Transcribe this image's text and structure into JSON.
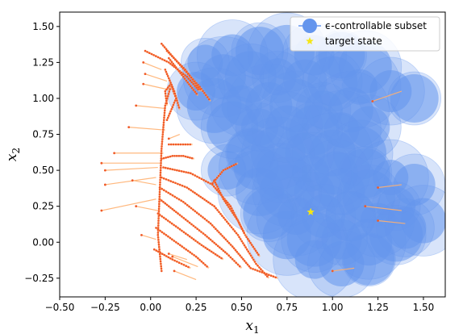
{
  "chart_data": {
    "type": "scatter",
    "title": "",
    "xlabel": "x",
    "xlabel_sub": "1",
    "ylabel": "x",
    "ylabel_sub": "2",
    "xlim": [
      -0.5,
      1.62
    ],
    "ylim": [
      -0.38,
      1.6
    ],
    "xticks": [
      -0.5,
      -0.25,
      0.0,
      0.25,
      0.5,
      0.75,
      1.0,
      1.25,
      1.5
    ],
    "xtick_labels": [
      "−0.50",
      "−0.25",
      "0.00",
      "0.25",
      "0.50",
      "0.75",
      "1.00",
      "1.25",
      "1.50"
    ],
    "yticks": [
      -0.25,
      0.0,
      0.25,
      0.5,
      0.75,
      1.0,
      1.25,
      1.5
    ],
    "ytick_labels": [
      "−0.25",
      "0.00",
      "0.25",
      "0.50",
      "0.75",
      "1.00",
      "1.25",
      "1.50"
    ],
    "grid": false,
    "legend_position": "top-right",
    "colors": {
      "subset": "#6495ED",
      "target": "#F5E616",
      "trajectory_dot": "#F05A28",
      "trajectory_line": "#FFB070"
    },
    "series": [
      {
        "name": "ϵ-controllable subset",
        "kind": "disks",
        "points": [
          [
            0.3,
            1.25
          ],
          [
            0.45,
            1.3
          ],
          [
            0.6,
            1.33
          ],
          [
            0.75,
            1.32
          ],
          [
            0.9,
            1.3
          ],
          [
            1.05,
            1.3
          ],
          [
            1.18,
            1.22
          ],
          [
            0.25,
            1.05
          ],
          [
            0.4,
            1.15
          ],
          [
            0.55,
            1.15
          ],
          [
            0.7,
            1.15
          ],
          [
            0.85,
            1.12
          ],
          [
            1.0,
            1.12
          ],
          [
            1.15,
            1.08
          ],
          [
            1.32,
            1.05
          ],
          [
            1.45,
            1.0
          ],
          [
            0.35,
            0.95
          ],
          [
            0.5,
            0.95
          ],
          [
            0.65,
            0.95
          ],
          [
            0.8,
            0.95
          ],
          [
            0.95,
            0.92
          ],
          [
            1.1,
            0.92
          ],
          [
            0.45,
            0.8
          ],
          [
            0.6,
            0.8
          ],
          [
            0.75,
            0.8
          ],
          [
            0.9,
            0.78
          ],
          [
            1.05,
            0.78
          ],
          [
            1.2,
            0.8
          ],
          [
            0.55,
            0.62
          ],
          [
            0.7,
            0.62
          ],
          [
            0.85,
            0.62
          ],
          [
            1.0,
            0.62
          ],
          [
            1.15,
            0.62
          ],
          [
            0.42,
            0.5
          ],
          [
            0.58,
            0.52
          ],
          [
            0.72,
            0.48
          ],
          [
            0.88,
            0.48
          ],
          [
            1.02,
            0.48
          ],
          [
            1.18,
            0.48
          ],
          [
            1.32,
            0.45
          ],
          [
            1.45,
            0.4
          ],
          [
            0.6,
            0.35
          ],
          [
            0.75,
            0.35
          ],
          [
            0.9,
            0.35
          ],
          [
            1.05,
            0.35
          ],
          [
            1.2,
            0.32
          ],
          [
            1.35,
            0.25
          ],
          [
            1.5,
            0.15
          ],
          [
            0.65,
            0.2
          ],
          [
            0.8,
            0.18
          ],
          [
            0.95,
            0.18
          ],
          [
            1.1,
            0.18
          ],
          [
            1.25,
            0.15
          ],
          [
            1.4,
            0.1
          ],
          [
            0.75,
            0.05
          ],
          [
            0.9,
            0.02
          ],
          [
            1.05,
            0.02
          ],
          [
            1.2,
            0.0
          ],
          [
            1.35,
            0.05
          ],
          [
            0.9,
            -0.12
          ],
          [
            1.05,
            -0.15
          ],
          [
            1.2,
            -0.12
          ]
        ]
      },
      {
        "name": "target state",
        "kind": "marker",
        "points": [
          [
            0.88,
            0.21
          ]
        ]
      }
    ],
    "trajectories": [
      [
        [
          0.06,
          -0.2
        ],
        [
          0.04,
          0.05
        ],
        [
          0.05,
          0.35
        ],
        [
          0.06,
          0.65
        ],
        [
          0.08,
          0.95
        ],
        [
          0.11,
          1.08
        ]
      ],
      [
        [
          0.09,
          0.85
        ],
        [
          0.14,
          1.0
        ],
        [
          0.11,
          1.1
        ],
        [
          0.08,
          1.05
        ],
        [
          0.09,
          0.95
        ]
      ],
      [
        [
          0.06,
          1.38
        ],
        [
          0.17,
          1.22
        ],
        [
          0.27,
          1.08
        ],
        [
          0.33,
          0.98
        ]
      ],
      [
        [
          0.09,
          1.33
        ],
        [
          0.19,
          1.2
        ],
        [
          0.28,
          1.05
        ]
      ],
      [
        [
          -0.03,
          1.33
        ],
        [
          0.1,
          1.25
        ],
        [
          0.2,
          1.15
        ],
        [
          0.27,
          1.05
        ]
      ],
      [
        [
          0.1,
          1.28
        ],
        [
          0.18,
          1.15
        ],
        [
          0.26,
          1.02
        ]
      ],
      [
        [
          0.08,
          1.2
        ],
        [
          0.13,
          1.05
        ],
        [
          0.16,
          0.92
        ]
      ],
      [
        [
          0.1,
          0.68
        ],
        [
          0.23,
          0.68
        ]
      ],
      [
        [
          0.06,
          0.58
        ],
        [
          0.12,
          0.6
        ],
        [
          0.18,
          0.6
        ],
        [
          0.24,
          0.58
        ]
      ],
      [
        [
          0.07,
          0.52
        ],
        [
          0.22,
          0.48
        ],
        [
          0.34,
          0.4
        ],
        [
          0.44,
          0.25
        ],
        [
          0.52,
          0.05
        ],
        [
          0.6,
          -0.1
        ]
      ],
      [
        [
          0.06,
          0.45
        ],
        [
          0.2,
          0.38
        ],
        [
          0.35,
          0.25
        ],
        [
          0.48,
          0.05
        ],
        [
          0.58,
          -0.15
        ],
        [
          0.65,
          -0.25
        ]
      ],
      [
        [
          0.05,
          0.38
        ],
        [
          0.18,
          0.28
        ],
        [
          0.33,
          0.13
        ],
        [
          0.45,
          -0.03
        ],
        [
          0.55,
          -0.18
        ],
        [
          0.7,
          -0.25
        ]
      ],
      [
        [
          0.05,
          0.3
        ],
        [
          0.15,
          0.2
        ],
        [
          0.3,
          0.05
        ],
        [
          0.42,
          -0.08
        ],
        [
          0.5,
          -0.18
        ]
      ],
      [
        [
          0.04,
          0.2
        ],
        [
          0.15,
          0.1
        ],
        [
          0.28,
          -0.02
        ],
        [
          0.4,
          -0.12
        ]
      ],
      [
        [
          0.03,
          0.1
        ],
        [
          0.14,
          0.0
        ],
        [
          0.25,
          -0.1
        ],
        [
          0.32,
          -0.18
        ]
      ],
      [
        [
          0.02,
          -0.05
        ],
        [
          0.12,
          -0.12
        ],
        [
          0.22,
          -0.18
        ]
      ],
      [
        [
          0.34,
          0.41
        ],
        [
          0.4,
          0.5
        ],
        [
          0.48,
          0.55
        ]
      ],
      [
        [
          0.35,
          0.43
        ],
        [
          0.4,
          0.3
        ],
        [
          0.48,
          0.15
        ],
        [
          0.52,
          0.05
        ]
      ]
    ],
    "control_segments": [
      [
        [
          -0.27,
          0.22
        ],
        [
          0.03,
          0.3
        ]
      ],
      [
        [
          -0.25,
          0.4
        ],
        [
          0.03,
          0.45
        ]
      ],
      [
        [
          -0.27,
          0.55
        ],
        [
          0.05,
          0.55
        ]
      ],
      [
        [
          -0.25,
          0.5
        ],
        [
          0.04,
          0.52
        ]
      ],
      [
        [
          -0.2,
          0.62
        ],
        [
          0.07,
          0.62
        ]
      ],
      [
        [
          -0.1,
          0.43
        ],
        [
          0.03,
          0.4
        ]
      ],
      [
        [
          -0.12,
          0.8
        ],
        [
          0.08,
          0.78
        ]
      ],
      [
        [
          -0.08,
          0.95
        ],
        [
          0.08,
          0.93
        ]
      ],
      [
        [
          -0.04,
          1.1
        ],
        [
          0.1,
          1.06
        ]
      ],
      [
        [
          -0.04,
          1.25
        ],
        [
          0.06,
          1.2
        ]
      ],
      [
        [
          -0.03,
          1.17
        ],
        [
          0.09,
          1.12
        ]
      ],
      [
        [
          -0.05,
          0.05
        ],
        [
          0.03,
          0.02
        ]
      ],
      [
        [
          -0.08,
          0.25
        ],
        [
          0.04,
          0.22
        ]
      ],
      [
        [
          0.1,
          0.72
        ],
        [
          0.16,
          0.75
        ]
      ],
      [
        [
          0.13,
          -0.2
        ],
        [
          0.25,
          -0.26
        ]
      ],
      [
        [
          0.12,
          -0.1
        ],
        [
          0.26,
          -0.17
        ]
      ],
      [
        [
          0.1,
          -0.08
        ],
        [
          0.2,
          -0.12
        ]
      ],
      [
        [
          1.22,
          0.98
        ],
        [
          1.38,
          1.05
        ]
      ],
      [
        [
          1.25,
          0.38
        ],
        [
          1.38,
          0.4
        ]
      ],
      [
        [
          1.25,
          0.15
        ],
        [
          1.4,
          0.13
        ]
      ],
      [
        [
          1.0,
          -0.2
        ],
        [
          1.12,
          -0.18
        ]
      ],
      [
        [
          1.18,
          0.25
        ],
        [
          1.38,
          0.22
        ]
      ]
    ]
  }
}
